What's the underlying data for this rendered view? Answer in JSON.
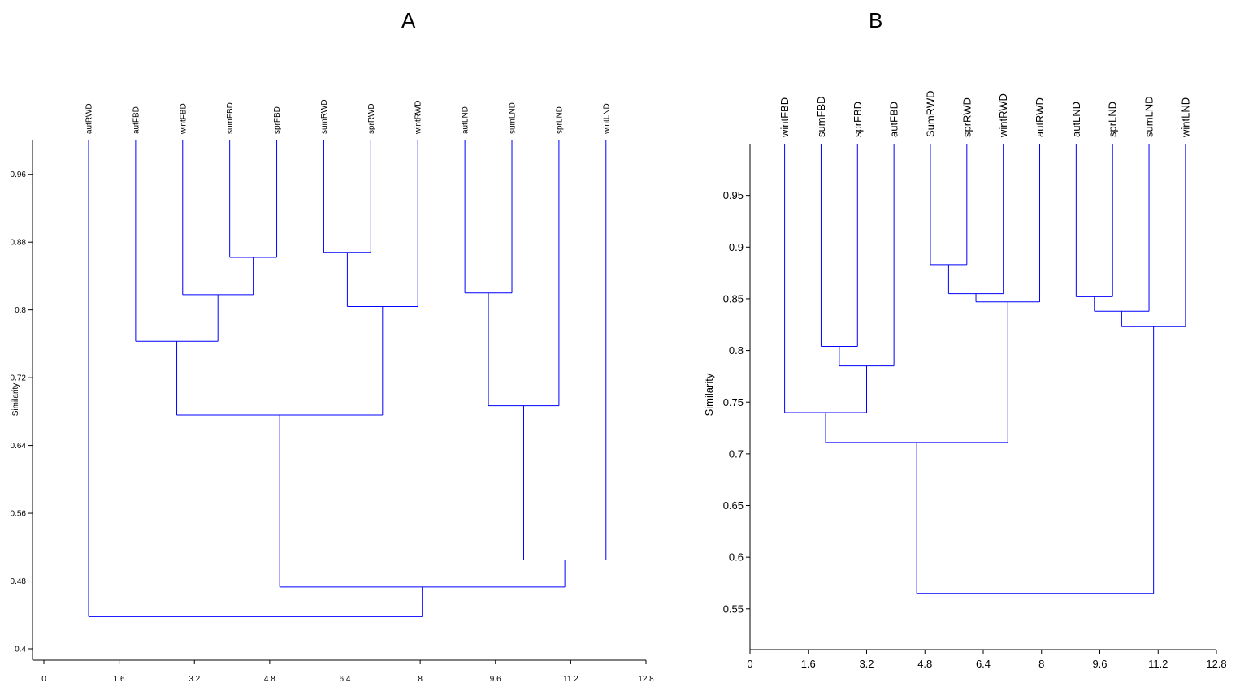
{
  "panels": {
    "a_title": "A",
    "b_title": "B"
  },
  "chart_data": [
    {
      "type": "dendrogram",
      "title": "A",
      "xlabel": "",
      "ylabel": "Similarity",
      "xlim": [
        0,
        12.8
      ],
      "ylim": [
        0.4,
        1.0
      ],
      "x_ticks": [
        0,
        1.6,
        3.2,
        4.8,
        6.4,
        8,
        9.6,
        11.2,
        12.8
      ],
      "x_tick_labels": [
        "0",
        "1.6",
        "3.2",
        "4.8",
        "6.4",
        "8",
        "9.6",
        "11.2",
        "12.8"
      ],
      "y_ticks": [
        0.4,
        0.48,
        0.56,
        0.64,
        0.72,
        0.8,
        0.88,
        0.96
      ],
      "y_tick_labels": [
        "0.4",
        "0.48",
        "0.56",
        "0.64",
        "0.72",
        "0.8",
        "0.88",
        "0.96"
      ],
      "leaves": [
        "autRWD",
        "autFBD",
        "wintFBD",
        "sumFBD",
        "sprFBD",
        "sumRWD",
        "sprRWD",
        "wintRWD",
        "autLND",
        "sumLND",
        "sprLND",
        "wintLND"
      ],
      "merges": [
        {
          "left": "sumFBD",
          "right": "sprFBD",
          "similarity": 0.862
        },
        {
          "left": "sumRWD",
          "right": "sprRWD",
          "similarity": 0.868
        },
        {
          "left": "autLND",
          "right": "sumLND",
          "similarity": 0.82
        },
        {
          "left": "wintFBD",
          "right": "sumFBD+sprFBD",
          "similarity": 0.818
        },
        {
          "left": "sumRWD+sprRWD",
          "right": "wintRWD",
          "similarity": 0.804
        },
        {
          "left": "autFBD",
          "right": "wintFBD+sumFBD+sprFBD",
          "similarity": 0.763
        },
        {
          "left": "autLND+sumLND",
          "right": "sprLND",
          "similarity": 0.687
        },
        {
          "left": "FBD cluster",
          "right": "RWD cluster",
          "similarity": 0.676
        },
        {
          "left": "autLND+sumLND+sprLND",
          "right": "wintLND",
          "similarity": 0.505
        },
        {
          "left": "FBD+RWD cluster",
          "right": "LND cluster",
          "similarity": 0.473
        },
        {
          "left": "autRWD",
          "right": "all others",
          "similarity": 0.438
        }
      ]
    },
    {
      "type": "dendrogram",
      "title": "B",
      "xlabel": "",
      "ylabel": "Similarity",
      "xlim": [
        0,
        12.8
      ],
      "ylim": [
        0.52,
        1.0
      ],
      "x_ticks": [
        0,
        1.6,
        3.2,
        4.8,
        6.4,
        8,
        9.6,
        11.2,
        12.8
      ],
      "x_tick_labels": [
        "0",
        "1.6",
        "3.2",
        "4.8",
        "6.4",
        "8",
        "9.6",
        "11.2",
        "12.8"
      ],
      "y_ticks": [
        0.55,
        0.6,
        0.65,
        0.7,
        0.75,
        0.8,
        0.85,
        0.9,
        0.95
      ],
      "y_tick_labels": [
        "0.55",
        "0.6",
        "0.65",
        "0.7",
        "0.75",
        "0.8",
        "0.85",
        "0.9",
        "0.95"
      ],
      "leaves": [
        "wintFBD",
        "sumFBD",
        "sprFBD",
        "autFBD",
        "SumRWD",
        "sprRWD",
        "wintRWD",
        "autRWD",
        "autLND",
        "sprLND",
        "sumLND",
        "wintLND"
      ],
      "merges": [
        {
          "left": "SumRWD",
          "right": "sprRWD",
          "similarity": 0.883
        },
        {
          "left": "SumRWD+sprRWD",
          "right": "wintRWD",
          "similarity": 0.855
        },
        {
          "left": "autLND",
          "right": "sprLND",
          "similarity": 0.852
        },
        {
          "left": "RWD cluster",
          "right": "autRWD",
          "similarity": 0.847
        },
        {
          "left": "autLND+sprLND",
          "right": "sumLND",
          "similarity": 0.838
        },
        {
          "left": "LND cluster",
          "right": "wintLND",
          "similarity": 0.823
        },
        {
          "left": "sumFBD",
          "right": "sprFBD",
          "similarity": 0.804
        },
        {
          "left": "sumFBD+sprFBD",
          "right": "autFBD",
          "similarity": 0.785
        },
        {
          "left": "wintFBD",
          "right": "sumFBD+sprFBD+autFBD",
          "similarity": 0.74
        },
        {
          "left": "FBD cluster",
          "right": "RWD cluster",
          "similarity": 0.711
        },
        {
          "left": "FBD+RWD cluster",
          "right": "LND cluster",
          "similarity": 0.565
        }
      ]
    }
  ]
}
